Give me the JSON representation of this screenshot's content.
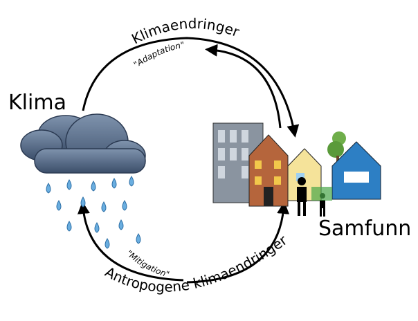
{
  "nodes": [
    {
      "label": "Klima"
    },
    {
      "label": "Samfunn"
    }
  ],
  "edges": [
    {
      "label": "Klimaendringer",
      "sublabel": "\"Adaptation\""
    },
    {
      "label": "Antropogene klimaendringer",
      "sublabel": "\"Mitigation\""
    }
  ]
}
